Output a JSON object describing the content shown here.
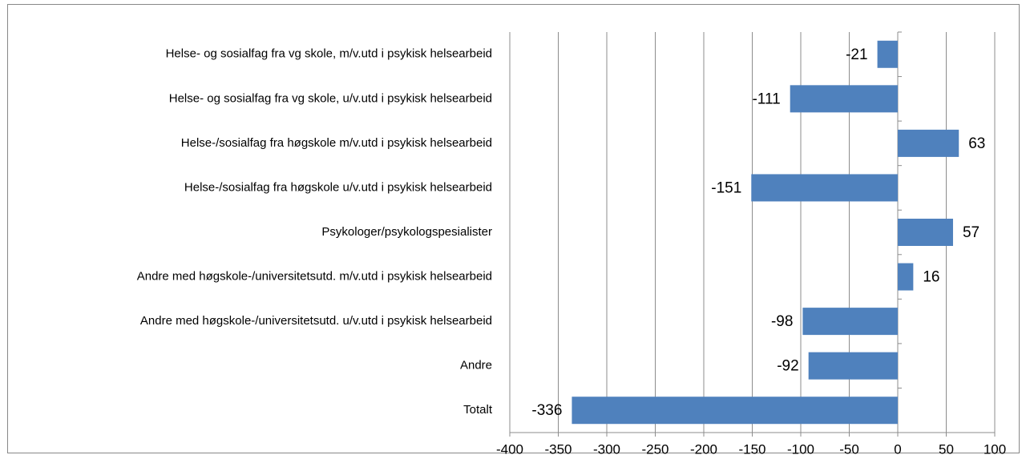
{
  "chart_data": {
    "type": "bar",
    "orientation": "horizontal",
    "categories": [
      "Helse- og sosialfag fra vg skole, m/v.utd i psykisk helsearbeid",
      "Helse- og sosialfag fra vg skole, u/v.utd i psykisk helsearbeid",
      "Helse-/sosialfag fra høgskole m/v.utd i psykisk helsearbeid",
      "Helse-/sosialfag fra høgskole u/v.utd i psykisk helsearbeid",
      "Psykologer/psykologspesialister",
      "Andre med høgskole-/universitetsutd. m/v.utd i psykisk helsearbeid",
      "Andre med høgskole-/universitetsutd. u/v.utd i psykisk helsearbeid",
      "Andre",
      "Totalt"
    ],
    "values": [
      -21,
      -111,
      63,
      -151,
      57,
      16,
      -98,
      -92,
      -336
    ],
    "color": "#4f81bd",
    "xlim": [
      -400,
      100
    ],
    "xticks": [
      -400,
      -350,
      -300,
      -250,
      -200,
      -150,
      -100,
      -50,
      0,
      50,
      100
    ],
    "grid": true
  }
}
